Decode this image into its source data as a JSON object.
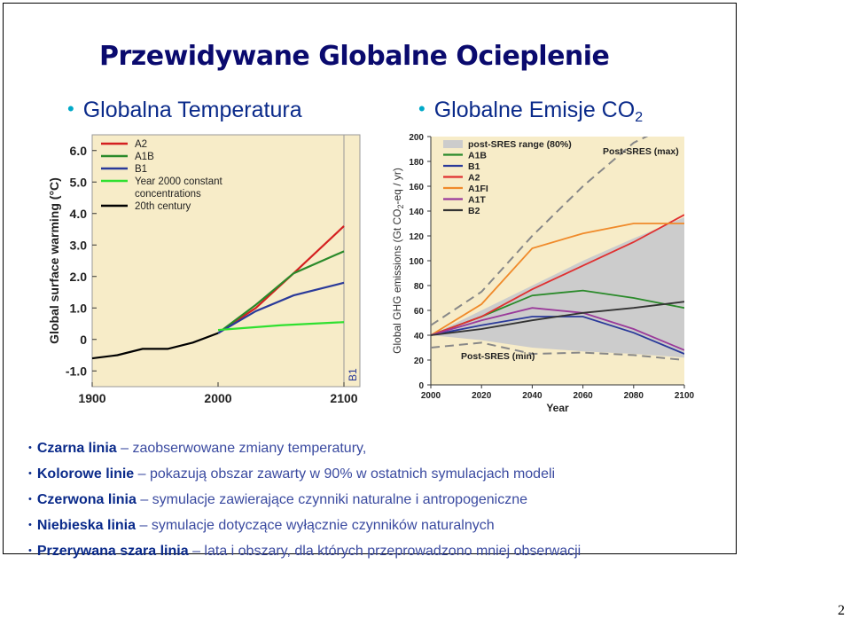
{
  "slide": {
    "title": "Przewidywane Globalne Ocieplenie",
    "subtitle_left": "Globalna Temperatura",
    "subtitle_right_main": "Globalne Emisje CO",
    "subtitle_right_sub": "2",
    "bullets": [
      {
        "lead": "Czarna linia",
        "rest": " – zaobserwowane zmiany temperatury,"
      },
      {
        "lead": "Kolorowe linie",
        "rest": " – pokazują obszar zawarty w 90% w ostatnich symulacjach modeli"
      },
      {
        "lead": "Czerwona linia",
        "rest": " – symulacje zawierające czynniki naturalne i antropogeniczne"
      },
      {
        "lead": "Niebieska linia",
        "rest": " – symulacje dotyczące wyłącznie czynników naturalnych"
      },
      {
        "lead": "Przerywana szara linia",
        "rest": " – lata i obszary, dla których przeprowadzono mniej obserwacji"
      }
    ],
    "page_number": "2"
  },
  "chart_data": [
    {
      "type": "line",
      "ylabel": "Global surface warming (°C)",
      "xlim": [
        1900,
        2100
      ],
      "ylim": [
        -1.5,
        6.5
      ],
      "x_ticks": [
        "1900",
        "2000",
        "2100"
      ],
      "y_ticks": [
        "6.0",
        "5.0",
        "4.0",
        "3.0",
        "2.0",
        "1.0",
        "0",
        "-1.0"
      ],
      "side_label": "B1",
      "grid": false,
      "legend_position": "top-left",
      "series": [
        {
          "name": "A2",
          "color": "#d42020",
          "x": [
            2000,
            2030,
            2060,
            2100
          ],
          "y": [
            0.2,
            1.0,
            2.1,
            3.6
          ]
        },
        {
          "name": "A1B",
          "color": "#2a8a2a",
          "x": [
            2000,
            2030,
            2060,
            2100
          ],
          "y": [
            0.2,
            1.1,
            2.1,
            2.8
          ]
        },
        {
          "name": "B1",
          "color": "#2a3a9a",
          "x": [
            2000,
            2030,
            2060,
            2100
          ],
          "y": [
            0.2,
            0.9,
            1.4,
            1.8
          ]
        },
        {
          "name": "Year 2000 constant concentrations",
          "color": "#30e030",
          "x": [
            2000,
            2050,
            2100
          ],
          "y": [
            0.3,
            0.45,
            0.55
          ]
        },
        {
          "name": "20th century",
          "color": "#000000",
          "x": [
            1900,
            1920,
            1940,
            1960,
            1980,
            2000
          ],
          "y": [
            -0.6,
            -0.5,
            -0.3,
            -0.3,
            -0.1,
            0.2
          ]
        }
      ]
    },
    {
      "type": "line",
      "xlabel": "Year",
      "ylabel_main": "Global GHG emissions (Gt CO",
      "ylabel_sub": "2",
      "ylabel_tail": "-eq / yr)",
      "xlim": [
        2000,
        2100
      ],
      "ylim": [
        0,
        200
      ],
      "x_ticks": [
        "2000",
        "2020",
        "2040",
        "2060",
        "2080",
        "2100"
      ],
      "y_ticks": [
        "0",
        "20",
        "40",
        "60",
        "80",
        "100",
        "120",
        "140",
        "160",
        "180",
        "200"
      ],
      "grid": false,
      "legend_position": "top-left",
      "annotations": {
        "max": "Post-SRES (max)",
        "min": "Post-SRES (min)"
      },
      "range_band": {
        "name": "post-SRES range (80%)",
        "color": "#cccccc",
        "x": [
          2000,
          2020,
          2040,
          2060,
          2080,
          2100
        ],
        "upper": [
          40,
          60,
          80,
          100,
          118,
          135
        ],
        "lower": [
          40,
          36,
          30,
          27,
          25,
          22
        ]
      },
      "series": [
        {
          "name": "A1B",
          "color": "#2a8a2a",
          "x": [
            2000,
            2020,
            2040,
            2060,
            2080,
            2100
          ],
          "y": [
            40,
            55,
            72,
            76,
            70,
            62
          ]
        },
        {
          "name": "B1",
          "color": "#2a3a9a",
          "x": [
            2000,
            2020,
            2040,
            2060,
            2080,
            2100
          ],
          "y": [
            40,
            48,
            55,
            55,
            42,
            25
          ]
        },
        {
          "name": "A2",
          "color": "#e03030",
          "x": [
            2000,
            2020,
            2040,
            2060,
            2080,
            2100
          ],
          "y": [
            40,
            55,
            77,
            96,
            115,
            137
          ]
        },
        {
          "name": "A1FI",
          "color": "#f08a2a",
          "x": [
            2000,
            2020,
            2040,
            2060,
            2080,
            2100
          ],
          "y": [
            40,
            65,
            110,
            122,
            130,
            130
          ]
        },
        {
          "name": "A1T",
          "color": "#9a3a9a",
          "x": [
            2000,
            2020,
            2040,
            2060,
            2080,
            2100
          ],
          "y": [
            40,
            52,
            62,
            58,
            45,
            28
          ]
        },
        {
          "name": "B2",
          "color": "#333333",
          "x": [
            2000,
            2020,
            2040,
            2060,
            2080,
            2100
          ],
          "y": [
            40,
            45,
            52,
            58,
            62,
            67
          ]
        },
        {
          "name": "Post-SRES (max)",
          "color": "#888888",
          "dashed": true,
          "x": [
            2000,
            2020,
            2040,
            2060,
            2080,
            2100
          ],
          "y": [
            48,
            75,
            120,
            160,
            195,
            215
          ]
        },
        {
          "name": "Post-SRES (min)",
          "color": "#888888",
          "dashed": true,
          "x": [
            2000,
            2020,
            2040,
            2060,
            2080,
            2100
          ],
          "y": [
            30,
            34,
            25,
            26,
            24,
            20
          ]
        }
      ]
    }
  ]
}
